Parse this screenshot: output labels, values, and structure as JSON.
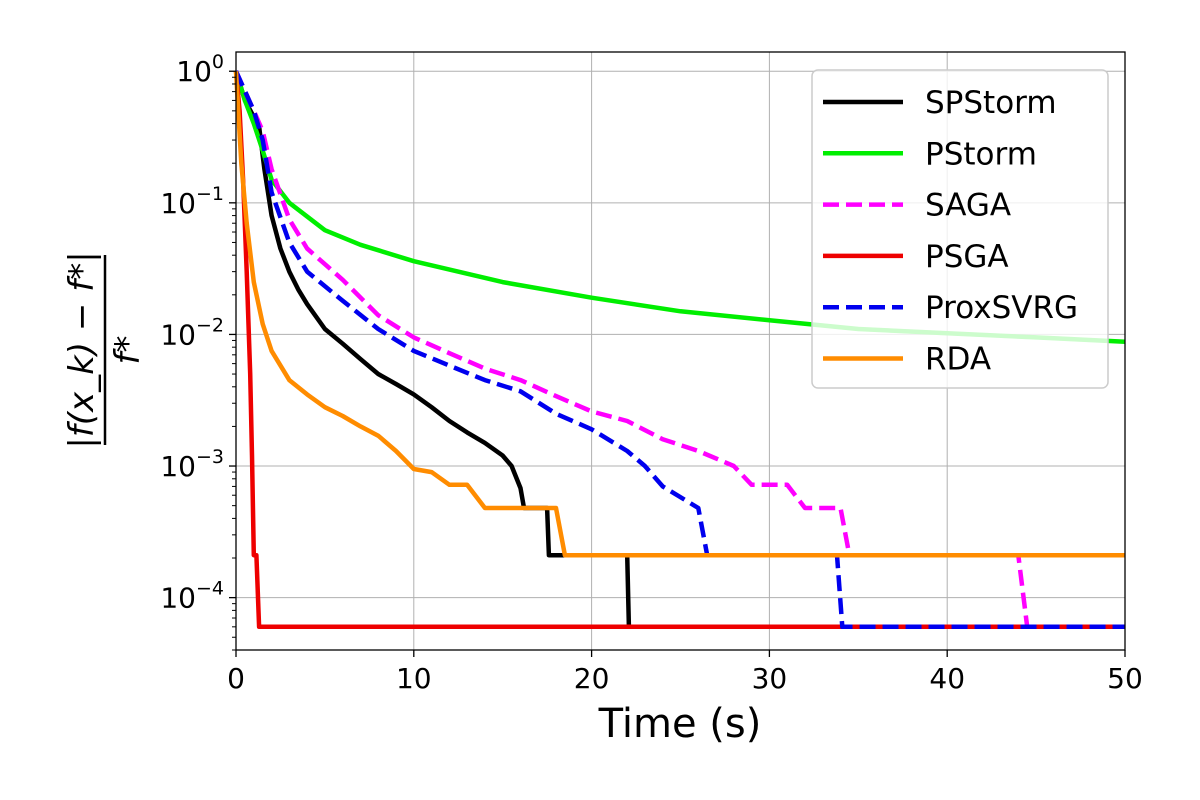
{
  "chart_data": {
    "type": "line",
    "title": "",
    "xlabel": "Time (s)",
    "ylabel_parts": {
      "numerator": "|f(x_k) − f*|",
      "denominator": "f*"
    },
    "xlim": [
      0,
      50
    ],
    "ylim": [
      4e-05,
      1.4
    ],
    "yscale": "log",
    "grid": true,
    "legend_position": "top-right",
    "x_ticks": [
      0,
      10,
      20,
      30,
      40,
      50
    ],
    "y_ticks": [
      {
        "value": 1,
        "base": "10",
        "exp": "0"
      },
      {
        "value": 0.1,
        "base": "10",
        "exp": "−1"
      },
      {
        "value": 0.01,
        "base": "10",
        "exp": "−2"
      },
      {
        "value": 0.001,
        "base": "10",
        "exp": "−3"
      },
      {
        "value": 0.0001,
        "base": "10",
        "exp": "−4"
      }
    ],
    "series": [
      {
        "name": "SPStorm",
        "color": "#000000",
        "dash": "solid",
        "points": [
          [
            0,
            1
          ],
          [
            0.5,
            0.6
          ],
          [
            1.0,
            0.45
          ],
          [
            1.3,
            0.38
          ],
          [
            1.6,
            0.18
          ],
          [
            2.0,
            0.08
          ],
          [
            2.5,
            0.045
          ],
          [
            3.0,
            0.03
          ],
          [
            3.5,
            0.022
          ],
          [
            4.0,
            0.017
          ],
          [
            5.0,
            0.011
          ],
          [
            6.0,
            0.0085
          ],
          [
            7.0,
            0.0065
          ],
          [
            8.0,
            0.005
          ],
          [
            9.0,
            0.0042
          ],
          [
            10.0,
            0.0035
          ],
          [
            11.0,
            0.0028
          ],
          [
            12.0,
            0.0022
          ],
          [
            13.0,
            0.0018
          ],
          [
            14.0,
            0.0015
          ],
          [
            15.0,
            0.0012
          ],
          [
            15.5,
            0.001
          ],
          [
            16.0,
            0.00068
          ],
          [
            16.2,
            0.00048
          ],
          [
            17.5,
            0.00048
          ],
          [
            17.6,
            0.00021
          ],
          [
            18.5,
            0.00021
          ],
          [
            21.5,
            0.00021
          ],
          [
            22.0,
            0.00021
          ],
          [
            22.1,
            6e-05
          ],
          [
            50,
            6e-05
          ]
        ]
      },
      {
        "name": "PStorm",
        "color": "#00ee00",
        "dash": "solid",
        "points": [
          [
            0,
            1
          ],
          [
            0.5,
            0.6
          ],
          [
            1.0,
            0.4
          ],
          [
            1.5,
            0.25
          ],
          [
            2.0,
            0.15
          ],
          [
            3.0,
            0.1
          ],
          [
            5.0,
            0.062
          ],
          [
            7.0,
            0.048
          ],
          [
            10.0,
            0.036
          ],
          [
            15.0,
            0.025
          ],
          [
            20.0,
            0.019
          ],
          [
            25.0,
            0.015
          ],
          [
            30.0,
            0.0128
          ],
          [
            35.0,
            0.011
          ],
          [
            40.0,
            0.0102
          ],
          [
            45.0,
            0.0095
          ],
          [
            50.0,
            0.0088
          ]
        ]
      },
      {
        "name": "SAGA",
        "color": "#ff00ff",
        "dash": "dashed",
        "points": [
          [
            0,
            1
          ],
          [
            1.0,
            0.5
          ],
          [
            1.5,
            0.35
          ],
          [
            2.0,
            0.18
          ],
          [
            3.0,
            0.075
          ],
          [
            4.0,
            0.045
          ],
          [
            6.0,
            0.026
          ],
          [
            8.0,
            0.014
          ],
          [
            10.0,
            0.0095
          ],
          [
            12.0,
            0.0072
          ],
          [
            14.0,
            0.0055
          ],
          [
            16.0,
            0.0045
          ],
          [
            18.0,
            0.0034
          ],
          [
            20.0,
            0.0026
          ],
          [
            22.0,
            0.0022
          ],
          [
            24.0,
            0.0016
          ],
          [
            26.0,
            0.0013
          ],
          [
            28.0,
            0.001
          ],
          [
            29.0,
            0.00072
          ],
          [
            31.0,
            0.00072
          ],
          [
            32.0,
            0.00048
          ],
          [
            34.0,
            0.00048
          ],
          [
            34.5,
            0.00021
          ],
          [
            44.0,
            0.00021
          ],
          [
            44.5,
            6e-05
          ],
          [
            50.0,
            6e-05
          ]
        ]
      },
      {
        "name": "PSGA",
        "color": "#ee0000",
        "dash": "solid",
        "points": [
          [
            0,
            1
          ],
          [
            0.2,
            0.5
          ],
          [
            0.4,
            0.15
          ],
          [
            0.6,
            0.03
          ],
          [
            0.8,
            0.005
          ],
          [
            0.9,
            0.0012
          ],
          [
            1.0,
            0.00021
          ],
          [
            1.15,
            0.00021
          ],
          [
            1.3,
            6e-05
          ],
          [
            50.0,
            6e-05
          ]
        ]
      },
      {
        "name": "ProxSVRG",
        "color": "#0000ee",
        "dash": "dashed",
        "points": [
          [
            0,
            1
          ],
          [
            1.0,
            0.5
          ],
          [
            1.5,
            0.3
          ],
          [
            2.0,
            0.12
          ],
          [
            3.0,
            0.05
          ],
          [
            4.0,
            0.03
          ],
          [
            6.0,
            0.018
          ],
          [
            8.0,
            0.011
          ],
          [
            10.0,
            0.0075
          ],
          [
            12.0,
            0.0058
          ],
          [
            14.0,
            0.0045
          ],
          [
            16.0,
            0.0037
          ],
          [
            18.0,
            0.0025
          ],
          [
            20.0,
            0.0019
          ],
          [
            22.0,
            0.0013
          ],
          [
            23.0,
            0.001
          ],
          [
            24.0,
            0.0007
          ],
          [
            26.0,
            0.00048
          ],
          [
            26.5,
            0.00021
          ],
          [
            33.8,
            0.00021
          ],
          [
            34.1,
            6e-05
          ],
          [
            50.0,
            6e-05
          ]
        ]
      },
      {
        "name": "RDA",
        "color": "#ff8c00",
        "dash": "solid",
        "points": [
          [
            0,
            1
          ],
          [
            0.3,
            0.2
          ],
          [
            0.6,
            0.07
          ],
          [
            1.0,
            0.025
          ],
          [
            1.5,
            0.012
          ],
          [
            2.0,
            0.0075
          ],
          [
            3.0,
            0.0045
          ],
          [
            4.0,
            0.0035
          ],
          [
            5.0,
            0.0028
          ],
          [
            6.0,
            0.0024
          ],
          [
            7.0,
            0.002
          ],
          [
            8.0,
            0.0017
          ],
          [
            9.0,
            0.0013
          ],
          [
            10.0,
            0.00095
          ],
          [
            11.0,
            0.0009
          ],
          [
            12.0,
            0.00072
          ],
          [
            13.0,
            0.00072
          ],
          [
            14.0,
            0.00048
          ],
          [
            17.0,
            0.00048
          ],
          [
            18.0,
            0.00048
          ],
          [
            18.5,
            0.00021
          ],
          [
            30.0,
            0.00021
          ],
          [
            50.0,
            0.00021
          ]
        ]
      }
    ]
  }
}
